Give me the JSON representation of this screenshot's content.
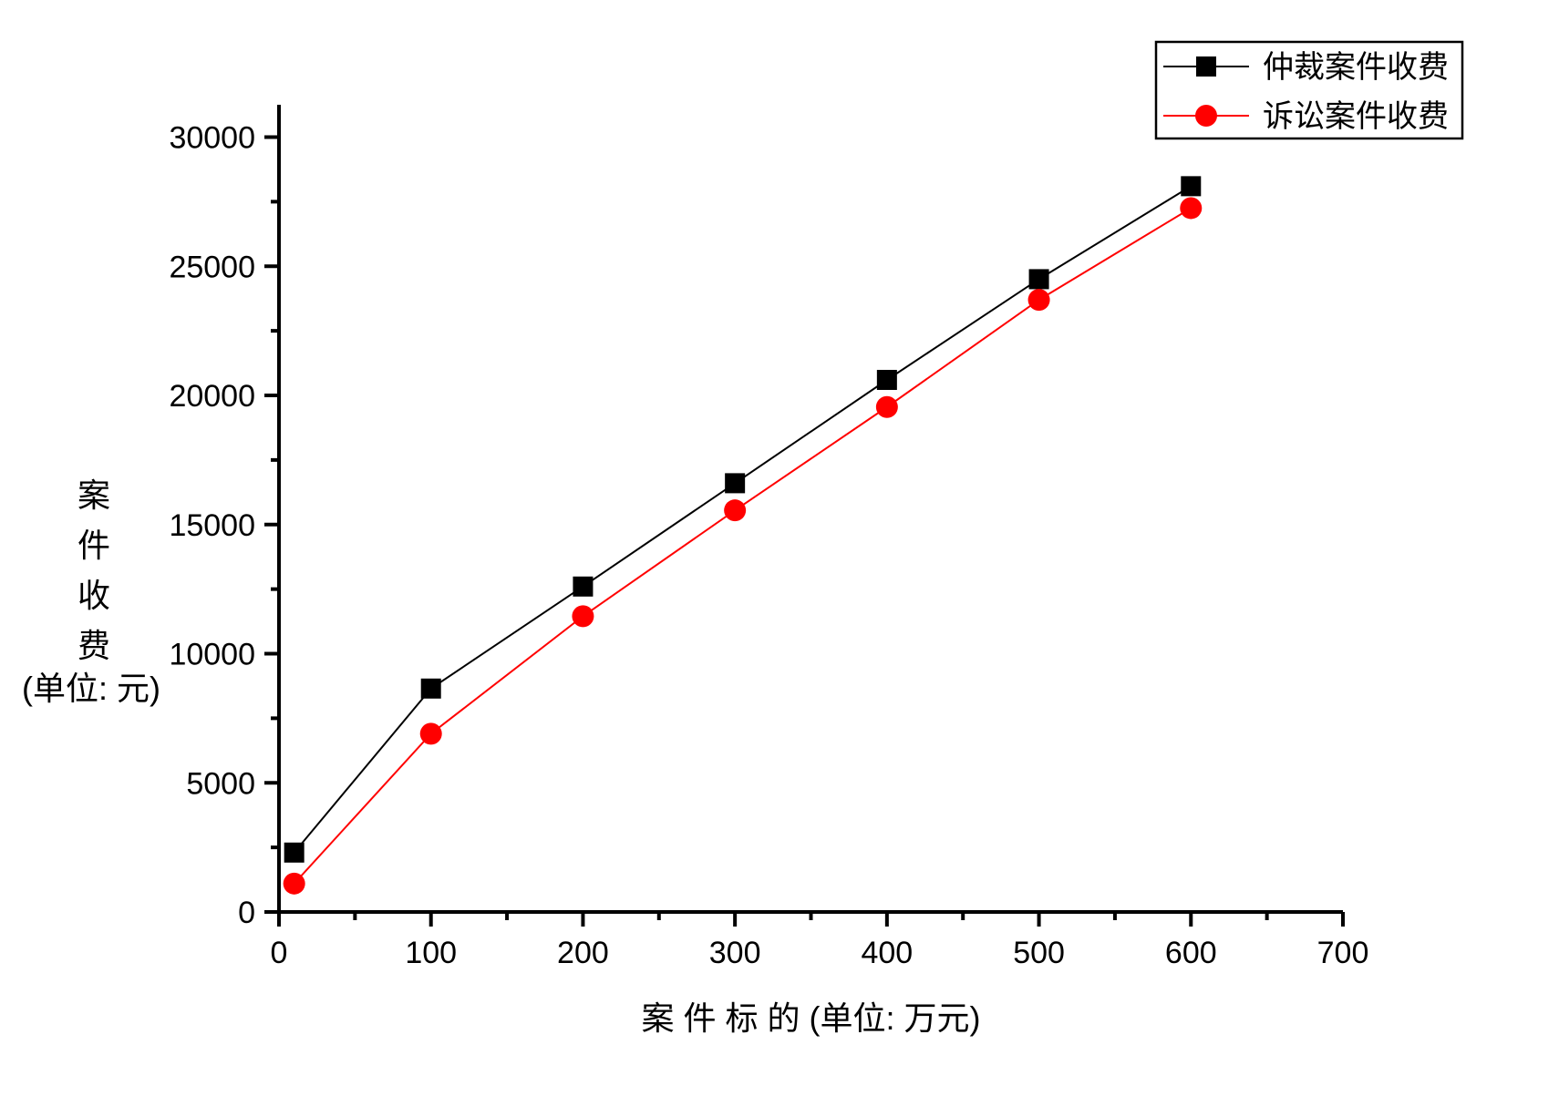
{
  "chart_data": {
    "type": "line",
    "title": "",
    "x": [
      10,
      100,
      200,
      300,
      400,
      500,
      600
    ],
    "series": [
      {
        "name": "仲裁案件收费",
        "color": "#000000",
        "marker": "square",
        "values": [
          2300,
          8650,
          12600,
          16600,
          20600,
          24500,
          28100
        ]
      },
      {
        "name": "诉讼案件收费",
        "color": "#ff0000",
        "marker": "circle",
        "values": [
          1100,
          6900,
          11450,
          15550,
          19550,
          23700,
          27250
        ]
      }
    ],
    "xlabel": "案  件  标  的   (单位:  万元)",
    "ylabel_chars": [
      "案",
      "件",
      "收",
      "费"
    ],
    "ylabel_unit": "(单位:  元)",
    "xlim": [
      0,
      700
    ],
    "ylim": [
      0,
      30000
    ],
    "x_major_ticks": [
      0,
      100,
      200,
      300,
      400,
      500,
      600,
      700
    ],
    "x_minor_step": 50,
    "y_major_ticks": [
      0,
      5000,
      10000,
      15000,
      20000,
      25000,
      30000
    ],
    "y_minor_step": 2500,
    "grid": false,
    "legend_position": "top-right",
    "colors": {
      "axis": "#000000",
      "background": "#ffffff"
    }
  }
}
